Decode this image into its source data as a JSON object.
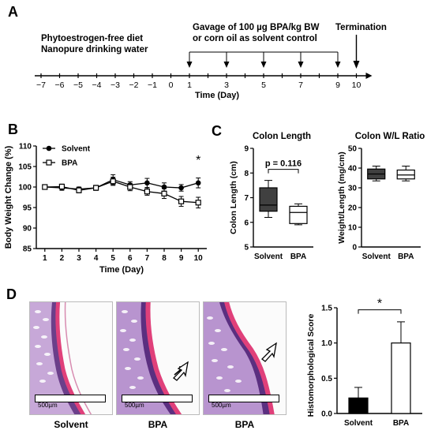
{
  "panels": {
    "A": {
      "label": "A",
      "diet_line1": "Phytoestrogen-free diet",
      "diet_line2": "Nanopure drinking water",
      "gavage_line1": "Gavage of 100 µg BPA/kg BW",
      "gavage_line2": "or corn oil as solvent control",
      "termination": "Termination",
      "timeline_ticks": [
        "−7",
        "−6",
        "−5",
        "−4",
        "−3",
        "−2",
        "−1",
        "0",
        "1",
        "3",
        "5",
        "7",
        "9",
        "10"
      ],
      "timeline_values": [
        -7,
        -6,
        -5,
        -4,
        -3,
        -2,
        -1,
        0,
        1,
        2,
        3,
        4,
        5,
        6,
        7,
        8,
        9,
        10
      ],
      "gavage_days": [
        1,
        3,
        5,
        7,
        9
      ],
      "termination_day": 10,
      "xlabel": "Time (Day)"
    },
    "B": {
      "label": "B",
      "ylabel": "Body Weight Change (%)",
      "xlabel": "Time (Day)",
      "star": "*"
    },
    "C": {
      "label": "C",
      "length_title": "Colon Length",
      "length_ylabel": "Colon Length (cm)",
      "p_text": "p = 0.116",
      "ratio_title": "Colon W/L Ratio",
      "ratio_ylabel": "Weight/Length (mg/cm)",
      "categories": [
        "Solvent",
        "BPA"
      ]
    },
    "D": {
      "label": "D",
      "scale_text": "500µm",
      "image_labels": [
        "Solvent",
        "BPA",
        "BPA"
      ],
      "score_ylabel": "Histomorphological Score",
      "star": "*",
      "categories": [
        "Solvent",
        "BPA"
      ]
    }
  },
  "chart_data": [
    {
      "type": "line",
      "title": "",
      "xlabel": "Time (Day)",
      "ylabel": "Body Weight Change (%)",
      "x": [
        1,
        2,
        3,
        4,
        5,
        6,
        7,
        8,
        9,
        10
      ],
      "ylim": [
        85,
        110
      ],
      "yticks": [
        85,
        90,
        95,
        100,
        105,
        110
      ],
      "legend": "top-left",
      "series": [
        {
          "name": "Solvent",
          "marker": "filled-circle",
          "values": [
            100,
            99.8,
            99.5,
            99.8,
            101.8,
            100.5,
            101,
            100,
            99.8,
            101
          ],
          "errors": [
            0.5,
            0.6,
            0.5,
            0.6,
            1.2,
            0.8,
            1.1,
            1.0,
            0.8,
            1.2
          ]
        },
        {
          "name": "BPA",
          "marker": "open-square",
          "values": [
            100,
            100.1,
            99.2,
            99.8,
            101.4,
            100,
            98.9,
            98.4,
            96.5,
            96.2
          ],
          "errors": [
            0.5,
            0.6,
            0.6,
            0.6,
            1.0,
            0.9,
            0.9,
            1.2,
            1.2,
            1.3
          ]
        }
      ],
      "annotation": {
        "x": 10,
        "text": "*"
      }
    },
    {
      "type": "box",
      "title": "Colon Length",
      "ylabel": "Colon Length (cm)",
      "categories": [
        "Solvent",
        "BPA"
      ],
      "ylim": [
        5,
        9
      ],
      "yticks": [
        5,
        6,
        7,
        8,
        9
      ],
      "boxes": [
        {
          "min": 6.2,
          "q1": 6.45,
          "median": 6.7,
          "q3": 7.4,
          "max": 7.7,
          "fill": "#404040"
        },
        {
          "min": 5.9,
          "q1": 5.95,
          "median": 6.4,
          "q3": 6.65,
          "max": 6.75,
          "fill": "#ffffff"
        }
      ],
      "annotation": "p = 0.116"
    },
    {
      "type": "box",
      "title": "Colon W/L Ratio",
      "ylabel": "Weight/Length (mg/cm)",
      "categories": [
        "Solvent",
        "BPA"
      ],
      "ylim": [
        0,
        50
      ],
      "yticks": [
        0,
        10,
        20,
        30,
        40,
        50
      ],
      "boxes": [
        {
          "min": 33.5,
          "q1": 34.5,
          "median": 37,
          "q3": 39.5,
          "max": 41,
          "fill": "#404040"
        },
        {
          "min": 33.5,
          "q1": 34.5,
          "median": 36.5,
          "q3": 39,
          "max": 41,
          "fill": "#ffffff"
        }
      ]
    },
    {
      "type": "bar",
      "title": "",
      "ylabel": "Histomorphological Score",
      "categories": [
        "Solvent",
        "BPA"
      ],
      "values": [
        0.22,
        1.0
      ],
      "errors": [
        0.15,
        0.3
      ],
      "ylim": [
        0,
        1.5
      ],
      "yticks": [
        0.0,
        0.5,
        1.0,
        1.5
      ],
      "fills": [
        "#000000",
        "#ffffff"
      ],
      "annotation": "*"
    }
  ]
}
